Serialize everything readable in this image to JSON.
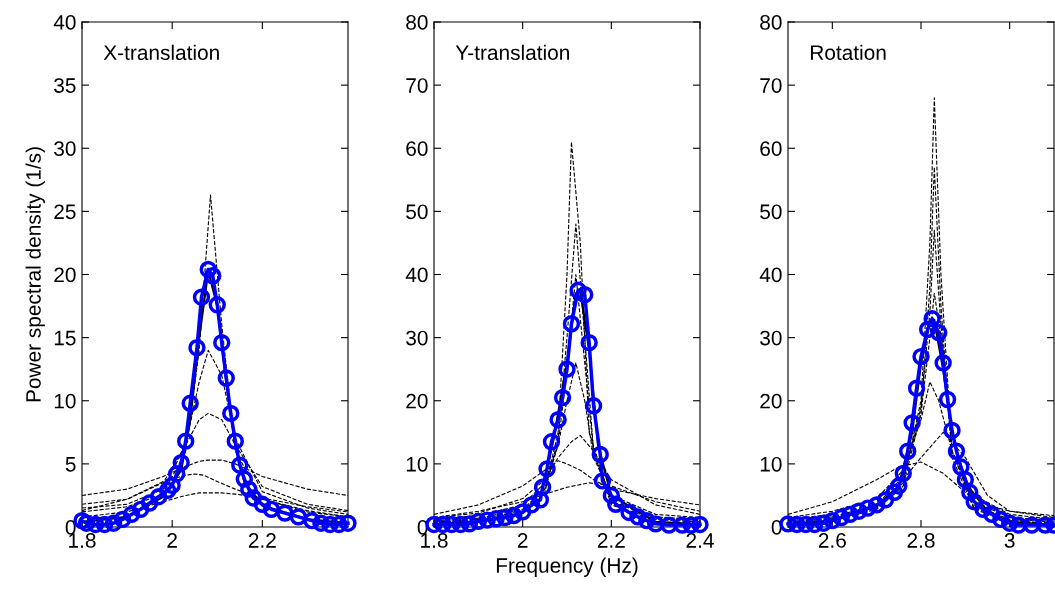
{
  "chart_data": [
    {
      "type": "line",
      "title": "X-translation",
      "ylabel": "Power spectral density (1/s)",
      "xlim": [
        1.8,
        2.39
      ],
      "xticks": [
        1.8,
        2,
        2.2
      ],
      "ylim": [
        0,
        40
      ],
      "yticks": [
        0,
        5,
        10,
        15,
        20,
        25,
        30,
        35,
        40
      ],
      "grid": false,
      "legend": false,
      "series": [
        {
          "color": "#000000",
          "line_style": "dashed",
          "marker": "none",
          "x": [
            1.8,
            1.9,
            1.98,
            2.03,
            2.06,
            2.085,
            2.11,
            2.14,
            2.2,
            2.3,
            2.39
          ],
          "values": [
            1.2,
            1.6,
            2.6,
            6,
            14,
            26.3,
            16,
            6,
            2.2,
            1.2,
            0.8
          ]
        },
        {
          "color": "#000000",
          "line_style": "dashed",
          "marker": "none",
          "x": [
            1.8,
            1.9,
            1.98,
            2.03,
            2.06,
            2.08,
            2.11,
            2.14,
            2.2,
            2.3,
            2.39
          ],
          "values": [
            1.5,
            1.8,
            3,
            6.5,
            11.5,
            14,
            12,
            7,
            2.8,
            1.5,
            1
          ]
        },
        {
          "color": "#000000",
          "line_style": "dashed",
          "marker": "none",
          "x": [
            1.8,
            1.9,
            1.98,
            2.03,
            2.06,
            2.08,
            2.11,
            2.14,
            2.2,
            2.3,
            2.39
          ],
          "values": [
            1.8,
            2.2,
            3.5,
            6.5,
            8.5,
            9,
            8.5,
            6.5,
            3.2,
            1.8,
            1.3
          ]
        },
        {
          "color": "#000000",
          "line_style": "dashed",
          "marker": "none",
          "x": [
            1.8,
            1.9,
            1.98,
            2.03,
            2.06,
            2.08,
            2.11,
            2.14,
            2.2,
            2.3,
            2.39
          ],
          "values": [
            2.5,
            3,
            4,
            4.8,
            5.2,
            5.3,
            5.3,
            5,
            4,
            3,
            2.5
          ]
        },
        {
          "color": "#000000",
          "line_style": "dashed",
          "marker": "none",
          "x": [
            1.8,
            1.9,
            1.98,
            2.03,
            2.05,
            2.07,
            2.1,
            2.14,
            2.2,
            2.3,
            2.39
          ],
          "values": [
            1.3,
            2.2,
            3.6,
            4.1,
            4.2,
            4.1,
            3.6,
            3.0,
            2.2,
            1.3,
            0.8
          ]
        },
        {
          "color": "#000000",
          "line_style": "dashed",
          "marker": "none",
          "x": [
            1.8,
            1.9,
            1.98,
            2.03,
            2.06,
            2.08,
            2.11,
            2.14,
            2.2,
            2.3,
            2.39
          ],
          "values": [
            0.8,
            1.2,
            2.0,
            2.5,
            2.7,
            2.7,
            2.7,
            2.6,
            2.3,
            1.6,
            1.2
          ]
        },
        {
          "color": "#0000ff",
          "line_style": "solid",
          "marker": "circle",
          "x": [
            1.8,
            1.81,
            1.83,
            1.85,
            1.87,
            1.89,
            1.91,
            1.93,
            1.95,
            1.97,
            1.99,
            2.0,
            2.01,
            2.02,
            2.03,
            2.04,
            2.055,
            2.065,
            2.08,
            2.09,
            2.1,
            2.11,
            2.12,
            2.13,
            2.14,
            2.15,
            2.16,
            2.17,
            2.18,
            2.2,
            2.22,
            2.25,
            2.28,
            2.31,
            2.33,
            2.35,
            2.37,
            2.39
          ],
          "values": [
            0.5,
            0.3,
            0.2,
            0.2,
            0.3,
            0.6,
            1.0,
            1.4,
            1.9,
            2.4,
            2.9,
            3.3,
            4.2,
            5.1,
            6.8,
            9.8,
            14.2,
            18.2,
            20.4,
            19.9,
            17.6,
            14.6,
            11.8,
            9.0,
            6.8,
            4.9,
            3.8,
            3.0,
            2.3,
            1.8,
            1.4,
            1.1,
            0.8,
            0.5,
            0.3,
            0.2,
            0.2,
            0.3
          ]
        },
        {
          "color": "#000000",
          "line_style": "solid",
          "marker": "none",
          "x": [
            1.8,
            1.9,
            1.98,
            2.02,
            2.04,
            2.06,
            2.08,
            2.1,
            2.12,
            2.14,
            2.16,
            2.2,
            2.3,
            2.39
          ],
          "values": [
            0.4,
            0.8,
            2.4,
            4.5,
            8.5,
            15,
            20.3,
            17.5,
            11.5,
            6.5,
            3.6,
            1.7,
            0.6,
            0.3
          ]
        }
      ]
    },
    {
      "type": "line",
      "title": "Y-translation",
      "xlabel": "Frequency (Hz)",
      "xlim": [
        1.8,
        2.4
      ],
      "xticks": [
        1.8,
        2,
        2.2,
        2.4
      ],
      "ylim": [
        0,
        80
      ],
      "yticks": [
        0,
        10,
        20,
        30,
        40,
        50,
        60,
        70,
        80
      ],
      "grid": false,
      "legend": false,
      "series": [
        {
          "color": "#000000",
          "line_style": "dashed",
          "marker": "none",
          "x": [
            1.8,
            1.9,
            2.0,
            2.05,
            2.08,
            2.1,
            2.11,
            2.13,
            2.15,
            2.2,
            2.3,
            2.4
          ],
          "values": [
            0.8,
            1.2,
            2.5,
            6,
            15,
            40,
            61,
            45,
            15,
            4,
            1.5,
            1
          ]
        },
        {
          "color": "#000000",
          "line_style": "dashed",
          "marker": "none",
          "x": [
            1.8,
            1.9,
            2.0,
            2.05,
            2.08,
            2.1,
            2.12,
            2.14,
            2.16,
            2.2,
            2.3,
            2.4
          ],
          "values": [
            0.6,
            1.0,
            2.2,
            5.5,
            14,
            30,
            48,
            30,
            12,
            3.5,
            1.2,
            0.8
          ]
        },
        {
          "color": "#000000",
          "line_style": "dashed",
          "marker": "none",
          "x": [
            1.8,
            1.9,
            2.0,
            2.05,
            2.08,
            2.1,
            2.12,
            2.14,
            2.16,
            2.2,
            2.3,
            2.4
          ],
          "values": [
            1.0,
            1.4,
            2.8,
            6,
            13,
            25,
            40,
            26,
            12,
            4,
            1.6,
            1.2
          ]
        },
        {
          "color": "#000000",
          "line_style": "dashed",
          "marker": "none",
          "x": [
            1.8,
            1.9,
            2.0,
            2.05,
            2.08,
            2.1,
            2.12,
            2.14,
            2.16,
            2.2,
            2.3,
            2.4
          ],
          "values": [
            1.2,
            1.8,
            3.5,
            7,
            13,
            20,
            26,
            20,
            11,
            5,
            2,
            1.5
          ]
        },
        {
          "color": "#000000",
          "line_style": "dashed",
          "marker": "none",
          "x": [
            1.8,
            1.9,
            2.0,
            2.05,
            2.08,
            2.11,
            2.13,
            2.16,
            2.2,
            2.3,
            2.4
          ],
          "values": [
            1.5,
            2.2,
            4.5,
            7.5,
            11,
            13.5,
            14.5,
            12,
            7.5,
            3.5,
            2
          ]
        },
        {
          "color": "#000000",
          "line_style": "dashed",
          "marker": "none",
          "x": [
            1.8,
            1.9,
            2.0,
            2.05,
            2.08,
            2.1,
            2.13,
            2.16,
            2.2,
            2.3,
            2.4
          ],
          "values": [
            2,
            3.5,
            6.5,
            9,
            10.5,
            10,
            9,
            7.5,
            6,
            4.5,
            3.5
          ]
        },
        {
          "color": "#000000",
          "line_style": "dashed",
          "marker": "none",
          "x": [
            1.8,
            1.9,
            2.0,
            2.05,
            2.1,
            2.15,
            2.2,
            2.3,
            2.4
          ],
          "values": [
            1.5,
            2.5,
            4,
            5.2,
            6.3,
            7,
            6.5,
            4,
            2.5
          ]
        },
        {
          "color": "#0000ff",
          "line_style": "solid",
          "marker": "circle",
          "x": [
            1.8,
            1.82,
            1.84,
            1.86,
            1.88,
            1.9,
            1.92,
            1.94,
            1.96,
            1.98,
            2.0,
            2.02,
            2.04,
            2.045,
            2.055,
            2.065,
            2.08,
            2.09,
            2.1,
            2.11,
            2.125,
            2.14,
            2.15,
            2.16,
            2.175,
            2.18,
            2.2,
            2.21,
            2.24,
            2.26,
            2.28,
            2.3,
            2.33,
            2.36,
            2.38,
            2.4
          ],
          "values": [
            0.4,
            0.4,
            0.4,
            0.4,
            0.5,
            0.9,
            1.1,
            1.3,
            1.5,
            1.8,
            2.4,
            3.5,
            4.3,
            6.3,
            9.2,
            13.5,
            17.0,
            20.5,
            25.0,
            32.2,
            37.5,
            36.8,
            29.2,
            19.2,
            11.5,
            7.3,
            5.0,
            3.6,
            2.3,
            1.6,
            1.0,
            0.5,
            0.3,
            0.3,
            0.3,
            0.4
          ]
        },
        {
          "color": "#000000",
          "line_style": "solid",
          "marker": "none",
          "x": [
            1.8,
            1.9,
            2.0,
            2.04,
            2.07,
            2.1,
            2.12,
            2.13,
            2.15,
            2.17,
            2.2,
            2.3,
            2.4
          ],
          "values": [
            0.4,
            0.8,
            2.2,
            4.5,
            14,
            26,
            37,
            37.5,
            28,
            13,
            5,
            0.8,
            0.4
          ]
        }
      ]
    },
    {
      "type": "line",
      "title": "Rotation",
      "xlim": [
        2.5,
        3.1
      ],
      "xticks": [
        2.6,
        2.8,
        3
      ],
      "ylim": [
        0,
        80
      ],
      "yticks": [
        0,
        10,
        20,
        30,
        40,
        50,
        60,
        70,
        80
      ],
      "grid": false,
      "legend": false,
      "series": [
        {
          "color": "#000000",
          "line_style": "dashed",
          "marker": "none",
          "x": [
            2.5,
            2.6,
            2.7,
            2.76,
            2.8,
            2.82,
            2.83,
            2.845,
            2.87,
            2.92,
            3.0,
            3.1
          ],
          "values": [
            0.6,
            1.2,
            3,
            7,
            20,
            45,
            68,
            40,
            12,
            3,
            1,
            0.6
          ]
        },
        {
          "color": "#000000",
          "line_style": "dashed",
          "marker": "none",
          "x": [
            2.5,
            2.6,
            2.7,
            2.76,
            2.8,
            2.82,
            2.83,
            2.845,
            2.87,
            2.92,
            3.0,
            3.1
          ],
          "values": [
            0.5,
            1.0,
            2.8,
            6.5,
            18,
            38,
            57,
            35,
            11,
            2.8,
            0.9,
            0.5
          ]
        },
        {
          "color": "#000000",
          "line_style": "dashed",
          "marker": "none",
          "x": [
            2.5,
            2.6,
            2.7,
            2.76,
            2.8,
            2.82,
            2.83,
            2.845,
            2.87,
            2.92,
            3.0,
            3.1
          ],
          "values": [
            0.8,
            1.4,
            3.2,
            7.5,
            19,
            34,
            47,
            32,
            12,
            3.5,
            1.2,
            0.8
          ]
        },
        {
          "color": "#000000",
          "line_style": "dashed",
          "marker": "none",
          "x": [
            2.5,
            2.6,
            2.7,
            2.76,
            2.8,
            2.82,
            2.83,
            2.85,
            2.87,
            2.92,
            3.0,
            3.1
          ],
          "values": [
            1,
            1.6,
            3.5,
            8,
            18,
            30,
            37,
            28,
            14,
            4,
            1.5,
            1
          ]
        },
        {
          "color": "#000000",
          "line_style": "dashed",
          "marker": "none",
          "x": [
            2.5,
            2.6,
            2.7,
            2.76,
            2.8,
            2.82,
            2.84,
            2.87,
            2.92,
            3.0,
            3.1
          ],
          "values": [
            1.2,
            2,
            4.5,
            9,
            17,
            23,
            20,
            12,
            5,
            2,
            1.2
          ]
        },
        {
          "color": "#000000",
          "line_style": "dashed",
          "marker": "none",
          "x": [
            2.5,
            2.6,
            2.7,
            2.76,
            2.8,
            2.85,
            2.9,
            2.95,
            3.0,
            3.1
          ],
          "values": [
            1.5,
            2.5,
            4.5,
            7.5,
            11,
            15,
            11,
            5,
            2.5,
            1.5
          ]
        },
        {
          "color": "#000000",
          "line_style": "dashed",
          "marker": "none",
          "x": [
            2.5,
            2.6,
            2.7,
            2.75,
            2.8,
            2.85,
            2.9,
            2.95,
            3.0,
            3.1
          ],
          "values": [
            2,
            4,
            7.5,
            9.5,
            10.3,
            8.5,
            5.5,
            3.5,
            2.5,
            1.8
          ]
        },
        {
          "color": "#0000ff",
          "line_style": "solid",
          "marker": "circle",
          "x": [
            2.5,
            2.52,
            2.54,
            2.56,
            2.58,
            2.6,
            2.62,
            2.64,
            2.66,
            2.68,
            2.7,
            2.72,
            2.74,
            2.75,
            2.76,
            2.77,
            2.78,
            2.79,
            2.8,
            2.815,
            2.825,
            2.84,
            2.85,
            2.86,
            2.87,
            2.88,
            2.89,
            2.9,
            2.91,
            2.92,
            2.94,
            2.96,
            2.98,
            3.0,
            3.02,
            3.05,
            3.08,
            3.1
          ],
          "values": [
            0.5,
            0.4,
            0.4,
            0.4,
            0.6,
            1.0,
            1.5,
            2.0,
            2.5,
            3.0,
            3.5,
            4.3,
            5.5,
            6.5,
            8.5,
            12.0,
            16.5,
            22.0,
            27.0,
            31.3,
            33.0,
            30.8,
            26.0,
            20.2,
            15.3,
            12.0,
            9.5,
            7.5,
            5.5,
            4.0,
            2.8,
            2.0,
            1.2,
            0.6,
            0.3,
            0.3,
            0.3,
            0.3
          ]
        },
        {
          "color": "#000000",
          "line_style": "solid",
          "marker": "none",
          "x": [
            2.5,
            2.6,
            2.7,
            2.75,
            2.78,
            2.8,
            2.82,
            2.83,
            2.85,
            2.87,
            2.9,
            2.95,
            3.0,
            3.1
          ],
          "values": [
            0.4,
            1.0,
            3.3,
            6.5,
            15,
            26,
            32.5,
            32.8,
            25,
            15,
            7,
            2.5,
            0.8,
            0.3
          ]
        }
      ]
    }
  ]
}
